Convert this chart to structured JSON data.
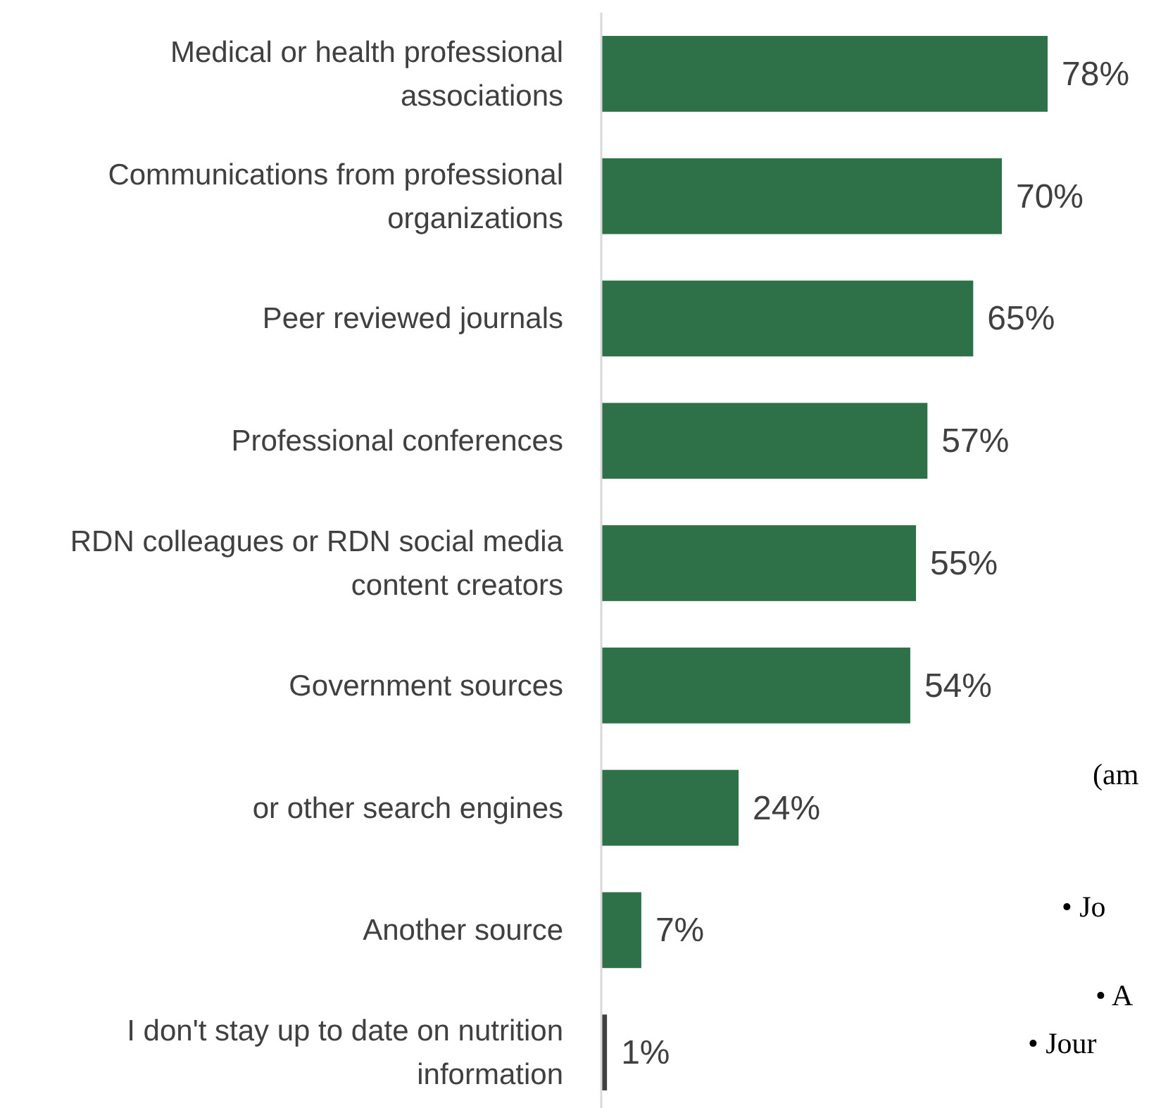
{
  "chart_data": {
    "type": "bar",
    "orientation": "horizontal",
    "data_labels": true,
    "categories": [
      "Medical or health professional associations",
      "Communications from professional organizations",
      "Peer reviewed journals",
      "Professional conferences",
      "RDN colleagues or RDN social media content creators",
      "Government sources",
      "or other search engines",
      "Another source",
      "I don't stay up to date on nutrition information"
    ],
    "values": [
      78,
      70,
      65,
      57,
      55,
      54,
      24,
      7,
      1
    ],
    "value_labels": [
      "78%",
      "70%",
      "65%",
      "57%",
      "55%",
      "54%",
      "24%",
      "7%",
      "1%"
    ],
    "colors": [
      "#2e7149",
      "#2e7149",
      "#2e7149",
      "#2e7149",
      "#2e7149",
      "#2e7149",
      "#2e7149",
      "#2e7149",
      "#404040"
    ],
    "annotations": [
      "(am",
      "• Jo",
      "• A",
      "• Jour"
    ]
  }
}
